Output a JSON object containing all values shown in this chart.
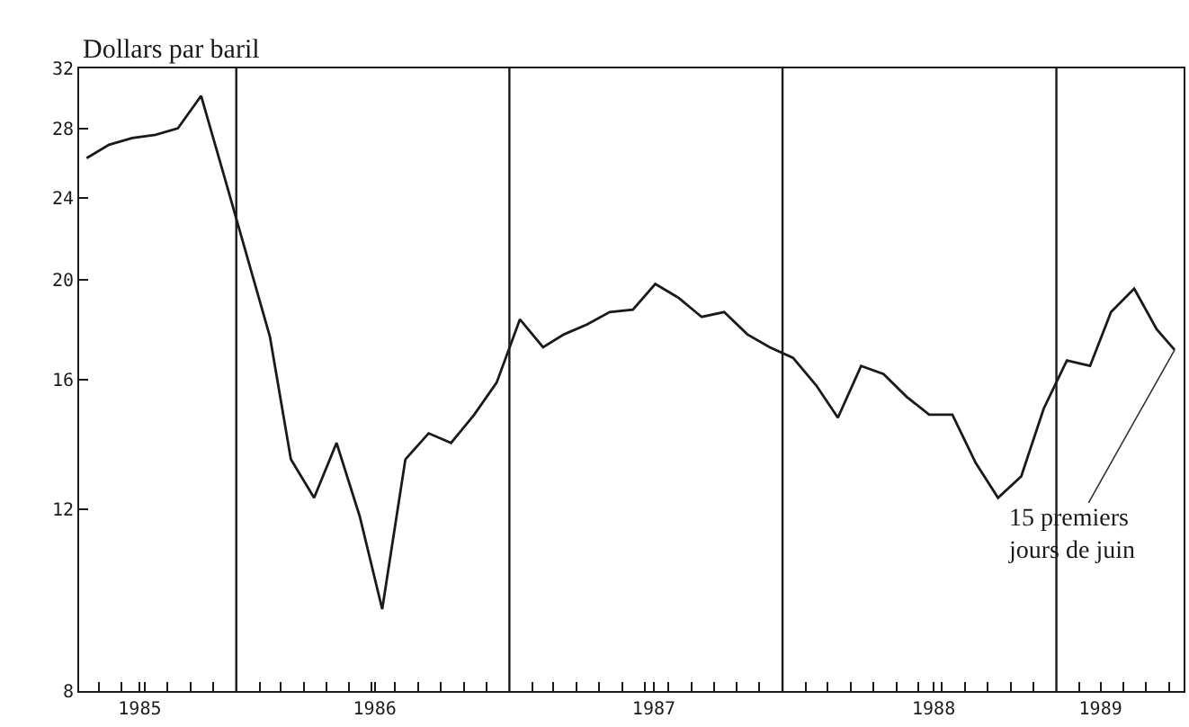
{
  "chart_data": {
    "type": "line",
    "ylabel": "Dollars par baril",
    "log": "y",
    "marker": "none",
    "line_style": "solid",
    "x": [
      "1985-06-15",
      "1985-07-15",
      "1985-08-15",
      "1985-09-15",
      "1985-10-15",
      "1985-11-15",
      "1985-12-15",
      "1986-01-15",
      "1986-02-15",
      "1986-03-15",
      "1986-04-15",
      "1986-05-15",
      "1986-06-15",
      "1986-07-15",
      "1986-08-15",
      "1986-09-15",
      "1986-10-15",
      "1986-11-15",
      "1986-12-15",
      "1987-01-15",
      "1987-02-15",
      "1987-03-15",
      "1987-04-15",
      "1987-05-15",
      "1987-06-15",
      "1987-07-15",
      "1987-08-15",
      "1987-09-15",
      "1987-10-15",
      "1987-11-15",
      "1987-12-15",
      "1988-01-15",
      "1988-02-15",
      "1988-03-15",
      "1988-04-15",
      "1988-05-15",
      "1988-06-15",
      "1988-07-15",
      "1988-08-15",
      "1988-09-15",
      "1988-10-15",
      "1988-11-15",
      "1988-12-15",
      "1989-01-15",
      "1989-02-15",
      "1989-03-15",
      "1989-04-15",
      "1989-05-15",
      "1989-06-08"
    ],
    "series": [
      {
        "color": "#1a1a1a",
        "values": [
          26.2,
          27.0,
          27.4,
          27.6,
          28.0,
          30.1,
          25.3,
          21.1,
          17.6,
          13.4,
          12.3,
          13.9,
          11.8,
          9.6,
          13.4,
          14.2,
          13.9,
          14.8,
          15.9,
          18.3,
          17.2,
          17.7,
          18.1,
          18.6,
          18.7,
          19.8,
          19.2,
          18.4,
          18.6,
          17.7,
          17.2,
          16.8,
          15.8,
          14.7,
          16.5,
          16.2,
          15.4,
          14.8,
          14.8,
          13.3,
          12.3,
          12.9,
          15.0,
          16.7,
          16.5,
          18.6,
          19.6,
          17.9,
          17.1
        ]
      }
    ],
    "xlim": [
      "1985-06-05",
      "1989-06-20"
    ],
    "ylim": [
      8,
      32
    ],
    "yticks": [
      8,
      12,
      16,
      20,
      24,
      28,
      32
    ],
    "xticks": [
      {
        "value": "1985-07-01",
        "label": null
      },
      {
        "value": "1985-08-01",
        "label": null
      },
      {
        "value": "1985-08-25",
        "label": "1985"
      },
      {
        "value": "1985-09-01",
        "label": null
      },
      {
        "value": "1985-10-01",
        "label": null
      },
      {
        "value": "1985-11-01",
        "label": null
      },
      {
        "value": "1985-12-01",
        "label": null
      },
      {
        "value": "1986-02-01",
        "label": null
      },
      {
        "value": "1986-03-01",
        "label": null
      },
      {
        "value": "1986-04-01",
        "label": null
      },
      {
        "value": "1986-05-01",
        "label": null
      },
      {
        "value": "1986-06-01",
        "label": null
      },
      {
        "value": "1986-07-01",
        "label": null
      },
      {
        "value": "1986-07-05",
        "label": "1986"
      },
      {
        "value": "1986-08-01",
        "label": null
      },
      {
        "value": "1986-09-01",
        "label": null
      },
      {
        "value": "1986-10-01",
        "label": null
      },
      {
        "value": "1986-11-01",
        "label": null
      },
      {
        "value": "1986-12-01",
        "label": null
      },
      {
        "value": "1987-02-01",
        "label": null
      },
      {
        "value": "1987-03-01",
        "label": null
      },
      {
        "value": "1987-04-01",
        "label": null
      },
      {
        "value": "1987-05-01",
        "label": null
      },
      {
        "value": "1987-06-01",
        "label": null
      },
      {
        "value": "1987-07-01",
        "label": null
      },
      {
        "value": "1987-07-13",
        "label": "1987"
      },
      {
        "value": "1987-08-01",
        "label": null
      },
      {
        "value": "1987-09-01",
        "label": null
      },
      {
        "value": "1987-10-01",
        "label": null
      },
      {
        "value": "1987-11-01",
        "label": null
      },
      {
        "value": "1987-12-01",
        "label": null
      },
      {
        "value": "1988-02-01",
        "label": null
      },
      {
        "value": "1988-03-01",
        "label": null
      },
      {
        "value": "1988-04-01",
        "label": null
      },
      {
        "value": "1988-05-01",
        "label": null
      },
      {
        "value": "1988-06-01",
        "label": null
      },
      {
        "value": "1988-07-01",
        "label": null
      },
      {
        "value": "1988-07-21",
        "label": "1988"
      },
      {
        "value": "1988-08-01",
        "label": null
      },
      {
        "value": "1988-09-01",
        "label": null
      },
      {
        "value": "1988-10-01",
        "label": null
      },
      {
        "value": "1988-11-01",
        "label": null
      },
      {
        "value": "1988-12-01",
        "label": null
      },
      {
        "value": "1989-02-01",
        "label": null
      },
      {
        "value": "1989-03-01",
        "label": "1989"
      },
      {
        "value": "1989-04-01",
        "label": null
      },
      {
        "value": "1989-05-01",
        "label": null
      },
      {
        "value": "1989-06-01",
        "label": null
      }
    ],
    "ref_lines": [
      {
        "axis": "x",
        "value": "1986-01-01",
        "color": "#1a1a1a"
      },
      {
        "axis": "x",
        "value": "1987-01-01",
        "color": "#1a1a1a"
      },
      {
        "axis": "x",
        "value": "1988-01-01",
        "color": "#1a1a1a"
      },
      {
        "axis": "x",
        "value": "1989-01-01",
        "color": "#1a1a1a"
      }
    ],
    "annotations": [
      {
        "text": "15 premiers\njours de juin",
        "x": "1989-06-08",
        "y": 17.1
      }
    ]
  }
}
